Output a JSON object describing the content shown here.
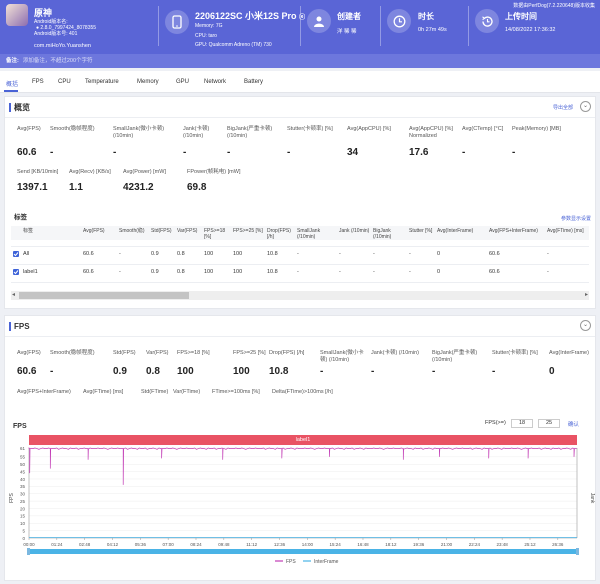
{
  "header": {
    "app": {
      "name": "原神",
      "version_label": "Android版本名:",
      "version": "2.8.0_7997424_8078355",
      "build_label": "Android版本号: 401",
      "package": "com.miHoYo.Yuanshen"
    },
    "device": {
      "title": "2206122SC 小米12S Pro",
      "memory": "Memory: 7G",
      "cpu": "CPU: taro",
      "gpu": "GPU: Qualcomm Adreno (TM) 730"
    },
    "creator": {
      "label": "创建者",
      "value": "洋 稀 稀"
    },
    "duration": {
      "label": "时长",
      "value": "0h 27m 49s"
    },
    "upload": {
      "label": "上传时间",
      "value": "14/08/2022 17:36:32"
    },
    "top_link": "数据由PerfDog(7.2.220648)版本收集"
  },
  "note": {
    "label": "备注:",
    "text": "添加备注，不超过200个字符"
  },
  "tabs": [
    "概括",
    "FPS",
    "CPU",
    "Temperature",
    "Memory",
    "GPU",
    "Network",
    "Battery"
  ],
  "overview": {
    "title": "概览",
    "export": "导出全部",
    "metrics_row1": [
      {
        "label": "Avg(FPS)",
        "value": "60.6"
      },
      {
        "label": "Smooth(稳帧程度)",
        "value": "-"
      },
      {
        "label": "SmallJank(微小卡顿) (/10min)",
        "value": "-"
      },
      {
        "label": "Jank(卡顿) (/10min)",
        "value": "-"
      },
      {
        "label": "BigJank(严重卡顿) (/10min)",
        "value": "-"
      },
      {
        "label": "Stutter(卡顿率) [%]",
        "value": "-"
      },
      {
        "label": "Avg(AppCPU) [%]",
        "value": "34"
      },
      {
        "label": "Avg(AppCPU) [%] Normalized",
        "value": "17.6"
      },
      {
        "label": "Avg(CTemp) [°C]",
        "value": "-"
      },
      {
        "label": "Peak(Memory) [MB]",
        "value": "-"
      }
    ],
    "metrics_row2": [
      {
        "label": "Send [KB/10min]",
        "value": "1397.1"
      },
      {
        "label": "Avg(Recv) [KB/s]",
        "value": "1.1"
      },
      {
        "label": "Avg(Power) [mW]",
        "value": "4231.2"
      },
      {
        "label": "FPower(帧耗电) [mW]",
        "value": "69.8"
      }
    ],
    "labels_title": "标签",
    "labels_link": "参数显示设置",
    "table": {
      "headers": [
        "标签",
        "Avg(FPS)",
        "Smooth(稳)",
        "Std(FPS)",
        "Var(FPS)",
        "FPS>=18 [%]",
        "FPS>=25 [%]",
        "Drop(FPS) [/h]",
        "SmallJank (/10min)",
        "Jank (/10min)",
        "BigJank (/10min)",
        "Stutter [%]",
        "Avg(InterFrame)",
        "Avg(FPS+InterFrame)",
        "Avg(FTime) [ms]"
      ],
      "rows": [
        [
          "All",
          "60.6",
          "-",
          "0.9",
          "0.8",
          "100",
          "100",
          "10.8",
          "-",
          "-",
          "-",
          "-",
          "0",
          "60.6",
          "-"
        ],
        [
          "label1",
          "60.6",
          "-",
          "0.9",
          "0.8",
          "100",
          "100",
          "10.8",
          "-",
          "-",
          "-",
          "-",
          "0",
          "60.6",
          "-"
        ]
      ]
    }
  },
  "fps_panel": {
    "title": "FPS",
    "metrics_row1": [
      {
        "label": "Avg(FPS)",
        "value": "60.6"
      },
      {
        "label": "Smooth(稳帧程度)",
        "value": "-"
      },
      {
        "label": "Std(FPS)",
        "value": "0.9"
      },
      {
        "label": "Var(FPS)",
        "value": "0.8"
      },
      {
        "label": "FPS>=18 [%]",
        "value": "100"
      },
      {
        "label": "FPS>=25 [%]",
        "value": "100"
      },
      {
        "label": "Drop(FPS) [/h]",
        "value": "10.8"
      },
      {
        "label": "SmallJank(微小卡顿) (/10min)",
        "value": "-"
      },
      {
        "label": "Jank(卡顿) (/10min)",
        "value": "-"
      },
      {
        "label": "BigJank(严重卡顿) (/10min)",
        "value": "-"
      },
      {
        "label": "Stutter(卡顿率) [%]",
        "value": "-"
      },
      {
        "label": "Avg(InterFrame)",
        "value": "0"
      }
    ],
    "metrics_row2": [
      {
        "label": "Avg(FPS+InterFrame)",
        "value": "-"
      },
      {
        "label": "Avg(FTime) [ms]",
        "value": "-"
      },
      {
        "label": "Std(FTime)",
        "value": "-"
      },
      {
        "label": "Var(FTime)",
        "value": "-"
      },
      {
        "label": "FTime>=100ms [%]",
        "value": "-"
      },
      {
        "label": "Delta(FTime)>100ms [/h]",
        "value": "-"
      }
    ],
    "chart_title": "FPS",
    "fps_filter_label": "FPS(>=)",
    "fps_filter_1": "18",
    "fps_filter_2": "25",
    "fps_filter_link": "确认",
    "band_label": "label1"
  },
  "chart_data": {
    "type": "line",
    "y_title": "FPS",
    "y2_title": "Jank",
    "ylim": [
      0,
      61
    ],
    "y_ticks": [
      61,
      55,
      50,
      45,
      40,
      35,
      30,
      25,
      20,
      15,
      10,
      5,
      0
    ],
    "x_ticks": [
      "00:00",
      "01:24",
      "02:48",
      "04:12",
      "05:36",
      "07:00",
      "08:24",
      "09:48",
      "11:12",
      "12:36",
      "14:00",
      "15:24",
      "16:48",
      "18:12",
      "19:36",
      "21:00",
      "22:24",
      "23:48",
      "25:12",
      "26:36"
    ],
    "series": [
      {
        "name": "FPS",
        "color": "#c23bb5",
        "baseline": 60.6,
        "dips": [
          [
            2,
            44
          ],
          [
            65,
            47
          ],
          [
            180,
            53
          ],
          [
            287,
            36
          ],
          [
            404,
            54
          ],
          [
            590,
            53
          ],
          [
            770,
            54
          ],
          [
            915,
            55
          ],
          [
            1140,
            53
          ],
          [
            1250,
            55
          ],
          [
            1400,
            54
          ],
          [
            1520,
            54
          ],
          [
            1660,
            55
          ]
        ]
      },
      {
        "name": "InterFrame",
        "color": "#4ab3e6",
        "baseline": 0
      }
    ],
    "x_max_seconds": 1669
  }
}
